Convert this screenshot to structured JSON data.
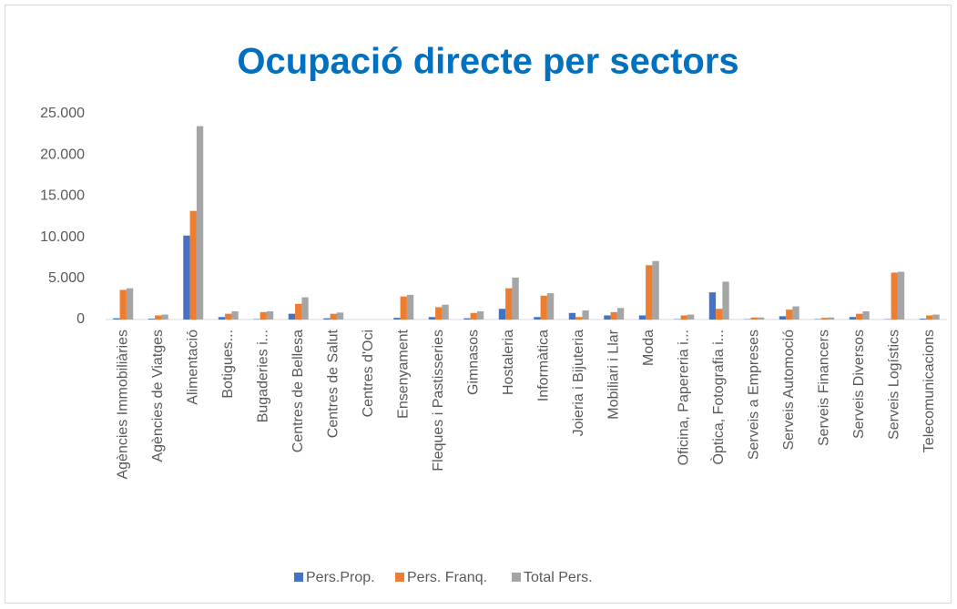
{
  "chart_data": {
    "type": "bar",
    "title": "Ocupació directe per sectors",
    "categories": [
      "Agències Immobiliàries",
      "Agències de Viatges",
      "Alimentació",
      "Botigues...",
      "Bugaderies i...",
      "Centres de Bellesa",
      "Centres de Salut",
      "Centres d'Oci",
      "Ensenyament",
      "Fleques i Pastisseries",
      "Gimnasos",
      "Hostaleria",
      "Informàtica",
      "Joieria i Bijuteria",
      "Mobiliari i Llar",
      "Moda",
      "Oficina, Papereria i...",
      "Òptica, Fotografia i...",
      "Serveis a Empreses",
      "Serveis Automoció",
      "Serveis Financers",
      "Serveis Diversos",
      "Serveis Logístics",
      "Telecomunicacions"
    ],
    "series": [
      {
        "name": "Pers.Prop.",
        "color": "#4472c4",
        "values": [
          150,
          100,
          10200,
          300,
          50,
          700,
          150,
          0,
          200,
          300,
          150,
          1300,
          300,
          800,
          500,
          500,
          50,
          3300,
          50,
          400,
          50,
          300,
          50,
          100
        ]
      },
      {
        "name": "Pers. Franq.",
        "color": "#ed7d31",
        "values": [
          3600,
          500,
          13200,
          700,
          900,
          1900,
          700,
          0,
          2800,
          1500,
          800,
          3800,
          2900,
          300,
          900,
          6600,
          500,
          1300,
          250,
          1200,
          200,
          700,
          5700,
          500
        ]
      },
      {
        "name": "Total Pers.",
        "color": "#a5a5a5",
        "values": [
          3800,
          600,
          23500,
          1000,
          1000,
          2700,
          850,
          0,
          3000,
          1800,
          1000,
          5100,
          3200,
          1100,
          1400,
          7100,
          600,
          4600,
          250,
          1600,
          250,
          1000,
          5800,
          600
        ]
      }
    ],
    "ylim": [
      0,
      25000
    ],
    "yticks": [
      0,
      {
        "value": 5000,
        "label": "5.000"
      },
      {
        "value": 10000,
        "label": "10.000"
      },
      {
        "value": 15000,
        "label": "15.000"
      },
      {
        "value": 20000,
        "label": "20.000"
      },
      {
        "value": 25000,
        "label": "25.000"
      }
    ],
    "grid": false,
    "legend": "bottom"
  }
}
